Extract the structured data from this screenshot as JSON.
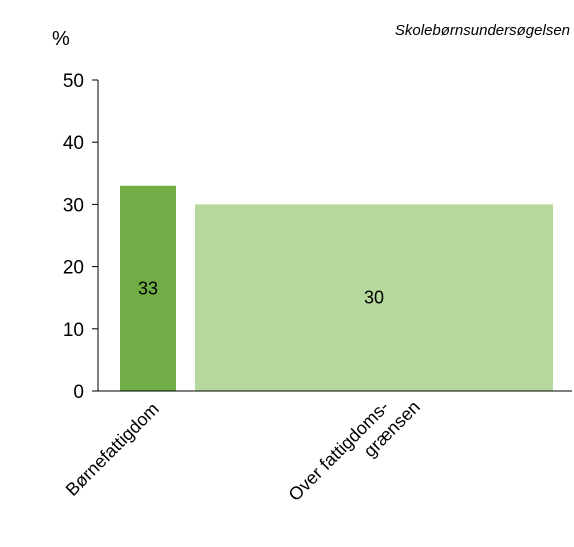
{
  "source": "Skolebørnsundersøgelsen",
  "chart_data": {
    "type": "bar",
    "title": "",
    "xlabel": "",
    "ylabel": "%",
    "ylim": [
      0,
      50
    ],
    "yticks": [
      "0",
      "10",
      "20",
      "30",
      "40",
      "50"
    ],
    "categories": [
      {
        "lines": [
          "Børnefattigdom"
        ]
      },
      {
        "lines": [
          "Over fattigdoms-",
          "grænsen"
        ]
      }
    ],
    "values": [
      33,
      30
    ],
    "value_labels": [
      "33",
      "30"
    ],
    "colors": [
      "#70ad47",
      "#b5d99c"
    ],
    "grid": false,
    "legend": "none"
  }
}
